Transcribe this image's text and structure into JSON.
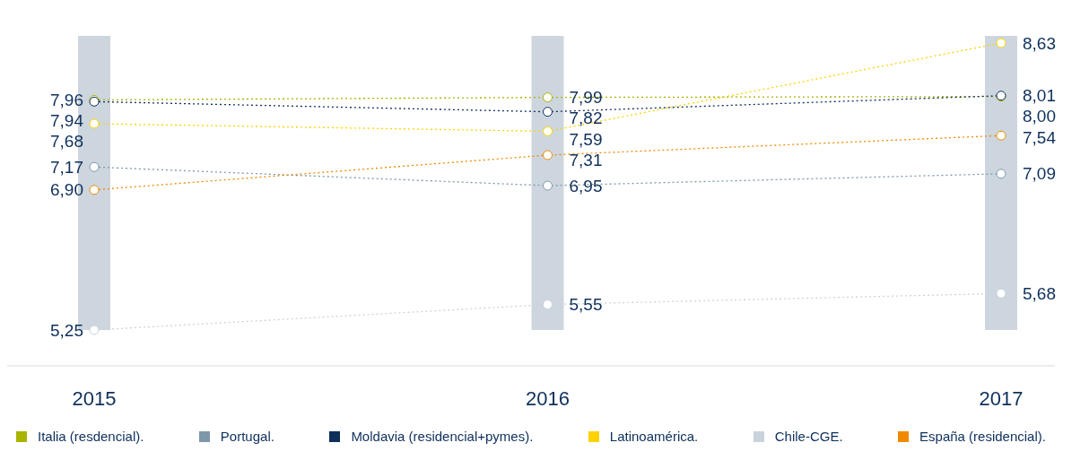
{
  "chart_data": {
    "type": "line",
    "categories": [
      "2015",
      "2016",
      "2017"
    ],
    "series": [
      {
        "name": "Italia (resdencial).",
        "color": "#a8b400",
        "values": [
          7.96,
          7.99,
          8.0
        ],
        "value_labels": [
          "7,96",
          "7,99",
          "8,00"
        ]
      },
      {
        "name": "Portugal.",
        "color": "#7d98a8",
        "values": [
          7.17,
          6.95,
          7.09
        ],
        "value_labels": [
          "7,17",
          "6,95",
          "7,09"
        ]
      },
      {
        "name": "Moldavia (residencial+pymes).",
        "color": "#0d2f5a",
        "values": [
          7.94,
          7.82,
          8.01
        ],
        "value_labels": [
          "7,94",
          "7,82",
          "8,01"
        ]
      },
      {
        "name": "Latinoamérica.",
        "color": "#ffd200",
        "values": [
          7.68,
          7.59,
          8.63
        ],
        "value_labels": [
          "7,68",
          "7,59",
          "8,63"
        ]
      },
      {
        "name": "Chile-CGE.",
        "color": "#c9d3dc",
        "values": [
          5.25,
          5.55,
          5.68
        ],
        "value_labels": [
          "5,25",
          "5,55",
          "5,68"
        ]
      },
      {
        "name": "España (residencial).",
        "color": "#ef8a00",
        "values": [
          6.9,
          7.31,
          7.54
        ],
        "value_labels": [
          "6,90",
          "7,31",
          "7,54"
        ]
      }
    ],
    "legend": "bottom",
    "marker": "circle",
    "line_style": "dotted"
  }
}
